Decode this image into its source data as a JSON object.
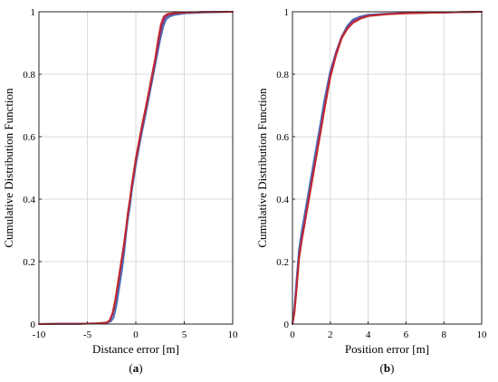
{
  "chart_data": [
    {
      "type": "line",
      "panel_label": "(a)",
      "xlabel": "Distance error [m]",
      "ylabel": "Cumulative Distribution Function",
      "xlim": [
        -10,
        10
      ],
      "ylim": [
        0,
        1
      ],
      "xticks": [
        "-10",
        "-5",
        "0",
        "5",
        "10"
      ],
      "yticks": [
        "0",
        "0.2",
        "0.4",
        "0.6",
        "0.8",
        "1"
      ],
      "grid": true,
      "series": [
        {
          "color": "#4a73b8",
          "x": [
            -10,
            -8,
            -6,
            -4,
            -3,
            -2.6,
            -2.3,
            -2.0,
            -1.7,
            -1.4,
            -1.2,
            -1.0,
            -0.8,
            -0.6,
            -0.4,
            -0.2,
            0,
            0.3,
            0.6,
            1.0,
            1.5,
            2.0,
            2.5,
            2.8,
            3.1,
            3.5,
            4.0,
            5.0,
            7.0,
            10.0
          ],
          "y": [
            0,
            0.0005,
            0.001,
            0.002,
            0.004,
            0.008,
            0.02,
            0.06,
            0.12,
            0.18,
            0.23,
            0.29,
            0.34,
            0.38,
            0.43,
            0.47,
            0.51,
            0.56,
            0.61,
            0.67,
            0.75,
            0.83,
            0.91,
            0.95,
            0.975,
            0.985,
            0.99,
            0.995,
            0.998,
            1.0
          ]
        },
        {
          "color": "#7a3f8f",
          "x": [
            -10,
            -8,
            -6,
            -4,
            -3,
            -2.7,
            -2.4,
            -2.1,
            -1.8,
            -1.5,
            -1.2,
            -1.0,
            -0.8,
            -0.6,
            -0.4,
            -0.2,
            0,
            0.3,
            0.6,
            1.0,
            1.5,
            2.0,
            2.4,
            2.7,
            3.0,
            3.4,
            4.0,
            5.0,
            7.0,
            10.0
          ],
          "y": [
            0,
            0.0005,
            0.001,
            0.002,
            0.004,
            0.01,
            0.03,
            0.07,
            0.13,
            0.19,
            0.25,
            0.3,
            0.35,
            0.4,
            0.44,
            0.48,
            0.52,
            0.57,
            0.62,
            0.68,
            0.76,
            0.84,
            0.91,
            0.955,
            0.98,
            0.99,
            0.994,
            0.997,
            0.999,
            1.0
          ]
        },
        {
          "color": "#c0272d",
          "x": [
            -10,
            -8,
            -6,
            -4,
            -3,
            -2.7,
            -2.4,
            -2.1,
            -1.8,
            -1.5,
            -1.3,
            -1.0,
            -0.8,
            -0.6,
            -0.4,
            -0.2,
            0,
            0.3,
            0.6,
            1.0,
            1.5,
            2.0,
            2.3,
            2.6,
            2.9,
            3.3,
            4.0,
            5.0,
            7.0,
            10.0
          ],
          "y": [
            0,
            0.0005,
            0.001,
            0.002,
            0.005,
            0.012,
            0.035,
            0.08,
            0.14,
            0.2,
            0.24,
            0.31,
            0.36,
            0.4,
            0.45,
            0.49,
            0.53,
            0.58,
            0.63,
            0.69,
            0.77,
            0.85,
            0.91,
            0.96,
            0.985,
            0.993,
            0.996,
            0.998,
            0.999,
            1.0
          ]
        }
      ]
    },
    {
      "type": "line",
      "panel_label": "(b)",
      "xlabel": "Position error [m]",
      "ylabel": "Cumulative Distribution Function",
      "xlim": [
        0,
        10
      ],
      "ylim": [
        0,
        1
      ],
      "xticks": [
        "0",
        "2",
        "4",
        "6",
        "8",
        "10"
      ],
      "yticks": [
        "0",
        "0.2",
        "0.4",
        "0.6",
        "0.8",
        "1"
      ],
      "grid": true,
      "series": [
        {
          "color": "#4a73b8",
          "x": [
            0,
            0.1,
            0.2,
            0.35,
            0.5,
            0.7,
            0.9,
            1.1,
            1.3,
            1.5,
            1.7,
            2.0,
            2.3,
            2.6,
            2.9,
            3.2,
            3.6,
            4.0,
            5.0,
            6.0,
            8.0,
            10.0
          ],
          "y": [
            0,
            0.05,
            0.13,
            0.24,
            0.3,
            0.37,
            0.44,
            0.51,
            0.58,
            0.65,
            0.72,
            0.81,
            0.87,
            0.92,
            0.955,
            0.975,
            0.985,
            0.99,
            0.994,
            0.996,
            0.998,
            1.0
          ]
        },
        {
          "color": "#7a3f8f",
          "x": [
            0,
            0.1,
            0.2,
            0.35,
            0.5,
            0.7,
            0.9,
            1.1,
            1.3,
            1.5,
            1.7,
            2.0,
            2.3,
            2.6,
            2.9,
            3.2,
            3.6,
            4.0,
            5.0,
            6.0,
            8.0,
            10.0
          ],
          "y": [
            0,
            0.04,
            0.11,
            0.22,
            0.28,
            0.35,
            0.42,
            0.49,
            0.56,
            0.63,
            0.7,
            0.8,
            0.87,
            0.92,
            0.95,
            0.97,
            0.982,
            0.988,
            0.993,
            0.996,
            0.998,
            1.0
          ]
        },
        {
          "color": "#c0272d",
          "x": [
            0,
            0.1,
            0.2,
            0.35,
            0.5,
            0.7,
            0.9,
            1.1,
            1.3,
            1.5,
            1.7,
            2.0,
            2.3,
            2.6,
            2.9,
            3.2,
            3.6,
            4.0,
            5.0,
            6.0,
            8.0,
            10.0
          ],
          "y": [
            0,
            0.035,
            0.1,
            0.21,
            0.27,
            0.34,
            0.41,
            0.48,
            0.55,
            0.62,
            0.69,
            0.79,
            0.86,
            0.915,
            0.945,
            0.965,
            0.978,
            0.986,
            0.992,
            0.995,
            0.998,
            1.0
          ]
        }
      ]
    }
  ]
}
